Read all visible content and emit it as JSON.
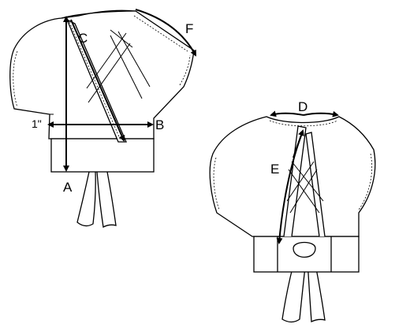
{
  "measurement_labels": {
    "a": "A",
    "b": "B",
    "c": "C",
    "d": "D",
    "e": "E",
    "f": "F",
    "hem_allowance": "1\""
  },
  "colors": {
    "line": "#000000",
    "fill": "#ffffff"
  }
}
